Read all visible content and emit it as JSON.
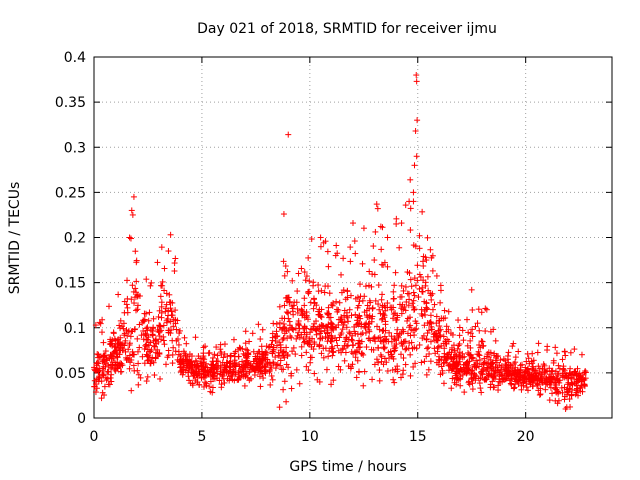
{
  "chart_data": {
    "type": "scatter",
    "title": "Day 021 of 2018, SRMTID for receiver ijmu",
    "xlabel": "GPS time / hours",
    "ylabel": "SRMTID / TECUs",
    "xlim": [
      0,
      24
    ],
    "ylim": [
      0,
      0.4
    ],
    "xticks": [
      0,
      5,
      10,
      15,
      20
    ],
    "xtick_labels": [
      "0",
      "5",
      "10",
      "15",
      "20"
    ],
    "yticks": [
      0,
      0.05,
      0.1,
      0.15,
      0.2,
      0.25,
      0.3,
      0.35,
      0.4
    ],
    "ytick_labels": [
      "0",
      "0.05",
      "0.1",
      "0.15",
      "0.2",
      "0.25",
      "0.3",
      "0.35",
      "0.4"
    ],
    "grid": true,
    "marker": "+",
    "color": "#ff0000",
    "series": [
      {
        "name": "SRMTID",
        "x_range": [
          0.0,
          22.8
        ],
        "envelope": [
          [
            0.0,
            0.05,
            0.025,
            0.11
          ],
          [
            0.5,
            0.06,
            0.02,
            0.12
          ],
          [
            1.0,
            0.07,
            0.025,
            0.13
          ],
          [
            1.5,
            0.085,
            0.03,
            0.16
          ],
          [
            1.9,
            0.1,
            0.025,
            0.245
          ],
          [
            2.5,
            0.08,
            0.035,
            0.15
          ],
          [
            3.0,
            0.09,
            0.04,
            0.195
          ],
          [
            3.5,
            0.11,
            0.05,
            0.205
          ],
          [
            3.8,
            0.1,
            0.045,
            0.19
          ],
          [
            4.0,
            0.06,
            0.04,
            0.09
          ],
          [
            5.0,
            0.055,
            0.025,
            0.09
          ],
          [
            6.0,
            0.055,
            0.03,
            0.09
          ],
          [
            7.0,
            0.06,
            0.035,
            0.1
          ],
          [
            8.0,
            0.065,
            0.03,
            0.12
          ],
          [
            8.5,
            0.07,
            0.03,
            0.14
          ],
          [
            9.0,
            0.1,
            0.02,
            0.2
          ],
          [
            10.0,
            0.11,
            0.04,
            0.215
          ],
          [
            11.0,
            0.1,
            0.035,
            0.19
          ],
          [
            12.0,
            0.09,
            0.03,
            0.2
          ],
          [
            13.0,
            0.1,
            0.04,
            0.24
          ],
          [
            14.0,
            0.08,
            0.03,
            0.23
          ],
          [
            14.9,
            0.12,
            0.05,
            0.3
          ],
          [
            15.5,
            0.11,
            0.03,
            0.2
          ],
          [
            16.0,
            0.08,
            0.04,
            0.17
          ],
          [
            16.5,
            0.06,
            0.03,
            0.15
          ],
          [
            17.0,
            0.05,
            0.025,
            0.11
          ],
          [
            18.0,
            0.055,
            0.025,
            0.13
          ],
          [
            19.0,
            0.05,
            0.03,
            0.09
          ],
          [
            20.0,
            0.045,
            0.025,
            0.08
          ],
          [
            21.0,
            0.045,
            0.02,
            0.085
          ],
          [
            22.0,
            0.04,
            0.01,
            0.08
          ],
          [
            22.8,
            0.045,
            0.025,
            0.07
          ]
        ],
        "notable_points": [
          {
            "x": 9.0,
            "y": 0.314
          },
          {
            "x": 14.93,
            "y": 0.38
          },
          {
            "x": 14.95,
            "y": 0.373
          },
          {
            "x": 14.97,
            "y": 0.33
          },
          {
            "x": 14.9,
            "y": 0.318
          },
          {
            "x": 14.95,
            "y": 0.29
          },
          {
            "x": 14.85,
            "y": 0.28
          },
          {
            "x": 14.8,
            "y": 0.25
          },
          {
            "x": 13.1,
            "y": 0.237
          },
          {
            "x": 13.15,
            "y": 0.232
          },
          {
            "x": 14.6,
            "y": 0.24
          },
          {
            "x": 1.85,
            "y": 0.245
          },
          {
            "x": 1.75,
            "y": 0.23
          },
          {
            "x": 1.8,
            "y": 0.225
          },
          {
            "x": 1.65,
            "y": 0.2
          },
          {
            "x": 8.8,
            "y": 0.226
          },
          {
            "x": 10.5,
            "y": 0.2
          },
          {
            "x": 12.0,
            "y": 0.216
          },
          {
            "x": 3.55,
            "y": 0.203
          },
          {
            "x": 3.45,
            "y": 0.185
          },
          {
            "x": 11.2,
            "y": 0.18
          },
          {
            "x": 14.0,
            "y": 0.215
          },
          {
            "x": 13.6,
            "y": 0.2
          },
          {
            "x": 8.6,
            "y": 0.012
          },
          {
            "x": 21.85,
            "y": 0.01
          },
          {
            "x": 0.35,
            "y": 0.022
          },
          {
            "x": 0.4,
            "y": 0.028
          },
          {
            "x": 8.9,
            "y": 0.018
          },
          {
            "x": 17.5,
            "y": 0.142
          },
          {
            "x": 18.2,
            "y": 0.12
          },
          {
            "x": 15.7,
            "y": 0.163
          },
          {
            "x": 15.4,
            "y": 0.175
          }
        ]
      }
    ]
  }
}
